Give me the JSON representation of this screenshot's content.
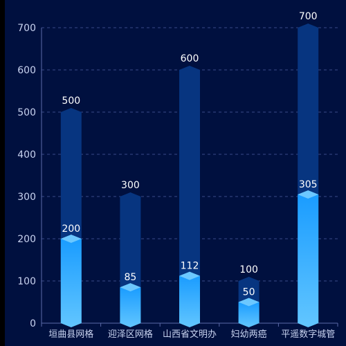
{
  "chart_data": {
    "type": "bar",
    "categories": [
      "垣曲县网格",
      "迎泽区网格",
      "山西省文明办",
      "妇幼两癌",
      "平遥数字城管"
    ],
    "series": [
      {
        "values": [
          500,
          300,
          600,
          100,
          700
        ]
      },
      {
        "values": [
          200,
          85,
          112,
          50,
          305
        ]
      }
    ],
    "ylim": [
      0,
      700
    ],
    "yticks": [
      0,
      100,
      200,
      300,
      400,
      500,
      600,
      700
    ],
    "grid": true,
    "legend": "none",
    "colors": {
      "background": "#00103f",
      "total_bar": "#073580",
      "total_cap": "#0a3d8c",
      "value_bar_top": "#1a9cff",
      "value_bar_bottom": "#62c6ff",
      "value_cap": "#6cc8ff",
      "grid": "#3a4a8a",
      "axis": "#5b6aa8",
      "text": "#c9d3f0",
      "label": "#ffffff"
    }
  }
}
